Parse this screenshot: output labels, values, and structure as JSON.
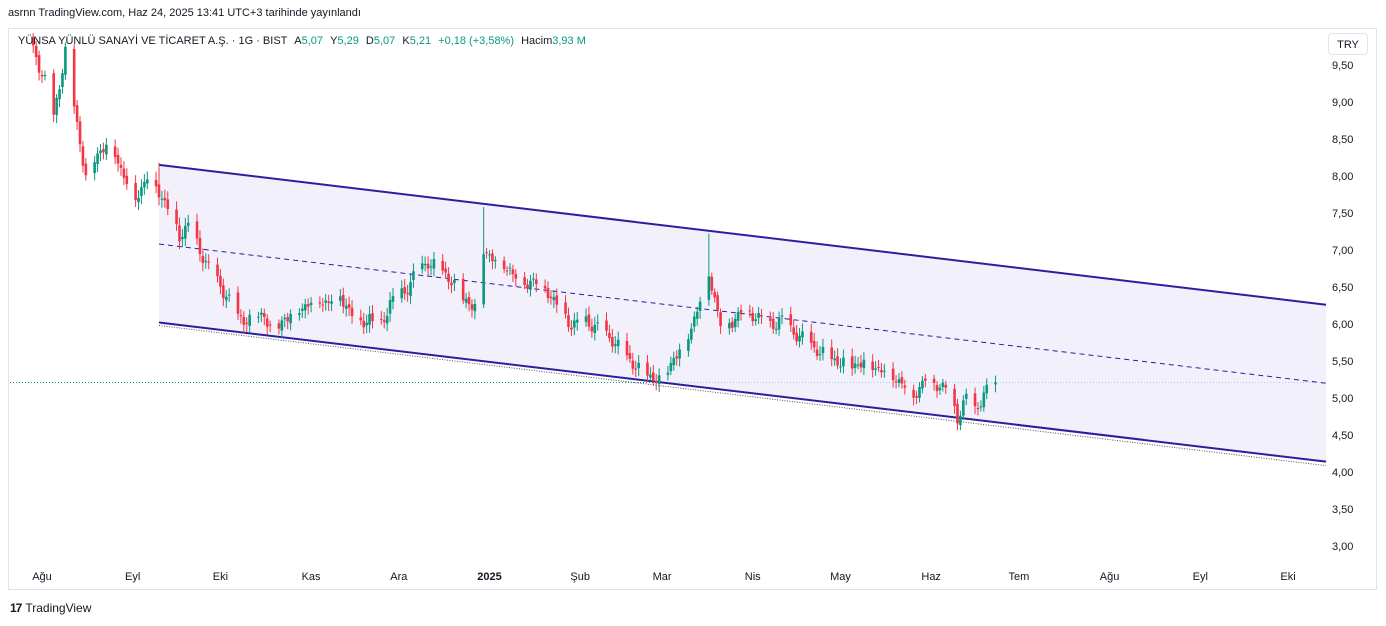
{
  "header": {
    "published": "asrnn TradingView.com, Haz 24, 2025 13:41 UTC+3 tarihinde yayınlandı"
  },
  "legend": {
    "symbol": "YÜNSA YÜNLÜ SANAYİ VE TİCARET A.Ş. · 1G · BIST",
    "open_label": "A",
    "open": "5,07",
    "high_label": "Y",
    "high": "5,29",
    "low_label": "D",
    "low": "5,07",
    "close_label": "K",
    "close": "5,21",
    "change": "+0,18 (+3,58%)",
    "volume_label": "Hacim",
    "volume": "3,93 M"
  },
  "currency_button": "TRY",
  "brand": {
    "logo": "17",
    "name": "TradingView"
  },
  "colors": {
    "up": "#089981",
    "down": "#f23645",
    "channel": "#2a1fa0",
    "fill": "#eceaf8"
  },
  "chart_data": {
    "type": "candlestick",
    "ylim": [
      2.8,
      10.0
    ],
    "y_ticks": [
      "9,50",
      "9,00",
      "8,50",
      "8,00",
      "7,50",
      "7,00",
      "6,50",
      "6,00",
      "5,50",
      "5,00",
      "4,50",
      "4,00",
      "3,50",
      "3,00"
    ],
    "y_tick_values": [
      9.5,
      9.0,
      8.5,
      8.0,
      7.5,
      7.0,
      6.5,
      6.0,
      5.5,
      5.0,
      4.5,
      4.0,
      3.5,
      3.0
    ],
    "x_ticks": [
      "Ağu",
      "Eyl",
      "Eki",
      "Kas",
      "Ara",
      "2025",
      "Şub",
      "Mar",
      "Nis",
      "May",
      "Haz",
      "Tem",
      "Ağu",
      "Eyl",
      "Eki"
    ],
    "x_tick_dates": [
      "2024-08-01",
      "2024-09-01",
      "2024-10-01",
      "2024-11-01",
      "2024-12-01",
      "2025-01-01",
      "2025-02-01",
      "2025-03-01",
      "2025-04-01",
      "2025-05-01",
      "2025-06-01",
      "2025-07-01",
      "2025-08-01",
      "2025-09-01",
      "2025-10-01"
    ],
    "last_price": 5.21,
    "channel": {
      "upper": [
        [
          "2024-09-10",
          8.15
        ],
        [
          "2025-10-14",
          6.26
        ]
      ],
      "middle": [
        [
          "2024-09-10",
          7.08
        ],
        [
          "2025-10-14",
          5.2
        ]
      ],
      "lower": [
        [
          "2024-09-10",
          6.02
        ],
        [
          "2025-10-14",
          4.14
        ]
      ]
    },
    "close_path": [
      [
        "2024-07-27",
        9.9
      ],
      [
        "2024-08-02",
        9.3
      ],
      [
        "2024-08-05",
        8.8
      ],
      [
        "2024-08-09",
        9.7
      ],
      [
        "2024-08-13",
        8.7
      ],
      [
        "2024-08-16",
        8.0
      ],
      [
        "2024-08-20",
        8.3
      ],
      [
        "2024-08-24",
        8.5
      ],
      [
        "2024-08-28",
        8.1
      ],
      [
        "2024-09-02",
        7.7
      ],
      [
        "2024-09-06",
        8.0
      ],
      [
        "2024-09-10",
        7.8
      ],
      [
        "2024-09-14",
        7.5
      ],
      [
        "2024-09-17",
        7.2
      ],
      [
        "2024-09-20",
        7.35
      ],
      [
        "2024-09-24",
        7.0
      ],
      [
        "2024-09-28",
        6.7
      ],
      [
        "2024-10-03",
        6.4
      ],
      [
        "2024-10-07",
        6.1
      ],
      [
        "2024-10-12",
        6.05
      ],
      [
        "2024-10-16",
        6.15
      ],
      [
        "2024-10-19",
        5.85
      ],
      [
        "2024-10-23",
        6.1
      ],
      [
        "2024-10-28",
        6.2
      ],
      [
        "2024-11-02",
        6.35
      ],
      [
        "2024-11-07",
        6.3
      ],
      [
        "2024-11-10",
        6.45
      ],
      [
        "2024-11-14",
        6.2
      ],
      [
        "2024-11-17",
        6.0
      ],
      [
        "2024-11-21",
        6.1
      ],
      [
        "2024-11-24",
        5.9
      ],
      [
        "2024-11-28",
        6.3
      ],
      [
        "2024-12-03",
        6.45
      ],
      [
        "2024-12-07",
        6.7
      ],
      [
        "2024-12-11",
        6.85
      ],
      [
        "2024-12-15",
        6.75
      ],
      [
        "2024-12-19",
        6.6
      ],
      [
        "2024-12-23",
        6.35
      ],
      [
        "2024-12-27",
        6.25
      ],
      [
        "2024-12-30",
        7.0
      ],
      [
        "2025-01-04",
        6.85
      ],
      [
        "2025-01-08",
        6.75
      ],
      [
        "2025-01-12",
        6.55
      ],
      [
        "2025-01-16",
        6.6
      ],
      [
        "2025-01-21",
        6.45
      ],
      [
        "2025-01-25",
        6.2
      ],
      [
        "2025-01-29",
        6.0
      ],
      [
        "2025-02-03",
        6.05
      ],
      [
        "2025-02-07",
        5.95
      ],
      [
        "2025-02-12",
        5.8
      ],
      [
        "2025-02-16",
        5.6
      ],
      [
        "2025-02-21",
        5.4
      ],
      [
        "2025-02-25",
        5.3
      ],
      [
        "2025-03-01",
        5.25
      ],
      [
        "2025-03-05",
        5.55
      ],
      [
        "2025-03-09",
        5.75
      ],
      [
        "2025-03-13",
        6.2
      ],
      [
        "2025-03-17",
        6.7
      ],
      [
        "2025-03-21",
        6.0
      ],
      [
        "2025-03-25",
        6.05
      ],
      [
        "2025-03-29",
        6.2
      ],
      [
        "2025-04-03",
        6.1
      ],
      [
        "2025-04-07",
        6.0
      ],
      [
        "2025-04-11",
        6.05
      ],
      [
        "2025-04-15",
        5.9
      ],
      [
        "2025-04-20",
        5.75
      ],
      [
        "2025-04-25",
        5.6
      ],
      [
        "2025-04-30",
        5.5
      ],
      [
        "2025-05-05",
        5.45
      ],
      [
        "2025-05-10",
        5.5
      ],
      [
        "2025-05-14",
        5.4
      ],
      [
        "2025-05-18",
        5.35
      ],
      [
        "2025-05-22",
        5.2
      ],
      [
        "2025-05-26",
        5.05
      ],
      [
        "2025-05-30",
        5.25
      ],
      [
        "2025-06-03",
        5.2
      ],
      [
        "2025-06-07",
        5.1
      ],
      [
        "2025-06-10",
        4.75
      ],
      [
        "2025-06-13",
        5.0
      ],
      [
        "2025-06-16",
        4.85
      ],
      [
        "2025-06-19",
        5.05
      ],
      [
        "2025-06-23",
        5.21
      ]
    ],
    "spikes": [
      {
        "date": "2024-12-30",
        "high": 7.58
      },
      {
        "date": "2025-03-17",
        "high": 7.22
      },
      {
        "date": "2024-09-10",
        "high": 8.18
      }
    ]
  }
}
